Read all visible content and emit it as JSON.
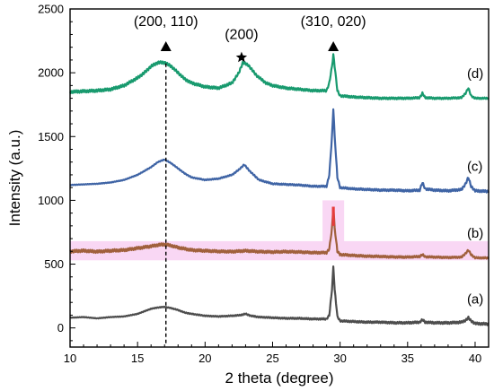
{
  "chart_data": {
    "type": "line",
    "xlabel": "2 theta (degree)",
    "ylabel": "Intensity (a.u.)",
    "xlim": [
      10,
      41
    ],
    "ylim": [
      -150,
      2500
    ],
    "x_ticks": [
      "10",
      "15",
      "20",
      "25",
      "30",
      "35",
      "40"
    ],
    "y_ticks": [
      "0",
      "500",
      "1000",
      "1500",
      "2000",
      "2500"
    ],
    "grid": false,
    "series": [
      {
        "name": "(a)",
        "color": "#4d4d4d",
        "x": [
          10,
          11,
          12,
          13,
          14,
          15,
          15.5,
          16,
          16.5,
          17,
          17.5,
          18,
          18.5,
          19,
          20,
          21,
          22,
          22.6,
          23,
          23.4,
          24,
          25,
          26,
          27,
          28,
          29,
          29.2,
          29.4,
          29.5,
          29.6,
          29.8,
          30,
          31,
          32,
          33,
          34,
          35,
          35.9,
          36.1,
          36.3,
          37,
          38,
          39,
          39.3,
          39.5,
          39.7,
          40,
          41
        ],
        "y": [
          80,
          85,
          75,
          85,
          90,
          110,
          130,
          150,
          160,
          165,
          155,
          140,
          120,
          110,
          95,
          90,
          95,
          100,
          110,
          95,
          85,
          80,
          75,
          75,
          70,
          70,
          100,
          300,
          480,
          300,
          90,
          55,
          50,
          45,
          45,
          40,
          40,
          45,
          65,
          45,
          40,
          40,
          45,
          60,
          80,
          55,
          35,
          30
        ]
      },
      {
        "name": "(b)",
        "color": "#a0603c",
        "x": [
          10,
          11,
          12,
          13,
          14,
          15,
          16,
          16.5,
          17,
          17.5,
          18,
          19,
          20,
          21,
          22,
          23,
          24,
          25,
          26,
          27,
          28,
          29,
          29.2,
          29.4,
          29.5,
          29.6,
          29.8,
          30,
          31,
          32,
          33,
          34,
          35,
          35.9,
          36.1,
          36.3,
          37,
          38,
          39,
          39.3,
          39.5,
          39.7,
          40,
          41
        ],
        "y": [
          600,
          605,
          598,
          605,
          610,
          625,
          640,
          650,
          655,
          645,
          630,
          610,
          605,
          600,
          598,
          605,
          598,
          595,
          598,
          595,
          590,
          590,
          620,
          780,
          950,
          780,
          600,
          575,
          568,
          562,
          560,
          556,
          555,
          560,
          575,
          558,
          555,
          552,
          555,
          585,
          610,
          575,
          550,
          548
        ]
      },
      {
        "name": "(c)",
        "color": "#3f64a5",
        "x": [
          10,
          11,
          12,
          13,
          14,
          15,
          16,
          16.5,
          17,
          17.5,
          18,
          18.5,
          19,
          20,
          21,
          22,
          22.5,
          22.9,
          23.3,
          24,
          25,
          26,
          27,
          28,
          29,
          29.2,
          29.4,
          29.5,
          29.6,
          29.8,
          30,
          31,
          32,
          33,
          34,
          35,
          35.9,
          36.1,
          36.3,
          37,
          38,
          39,
          39.3,
          39.5,
          39.7,
          40,
          41
        ],
        "y": [
          1120,
          1125,
          1130,
          1140,
          1160,
          1200,
          1260,
          1300,
          1320,
          1290,
          1250,
          1210,
          1180,
          1160,
          1170,
          1200,
          1240,
          1280,
          1230,
          1160,
          1130,
          1125,
          1120,
          1110,
          1110,
          1200,
          1500,
          1720,
          1500,
          1180,
          1100,
          1090,
          1085,
          1080,
          1080,
          1075,
          1080,
          1140,
          1090,
          1080,
          1075,
          1085,
          1130,
          1180,
          1110,
          1075,
          1070
        ]
      },
      {
        "name": "(d)",
        "color": "#189a6e",
        "x": [
          10,
          11,
          12,
          13,
          14,
          15,
          15.5,
          16,
          16.5,
          17,
          17.5,
          18,
          18.5,
          19,
          20,
          21,
          22,
          22.5,
          22.8,
          23.2,
          23.8,
          24.5,
          25,
          26,
          27,
          28,
          29,
          29.2,
          29.4,
          29.5,
          29.6,
          29.8,
          30,
          31,
          32,
          33,
          34,
          35,
          35.9,
          36.1,
          36.3,
          37,
          38,
          39,
          39.3,
          39.5,
          39.7,
          40,
          41
        ],
        "y": [
          1850,
          1855,
          1860,
          1870,
          1900,
          1960,
          2000,
          2050,
          2080,
          2080,
          2050,
          2000,
          1950,
          1920,
          1890,
          1880,
          1920,
          2000,
          2080,
          2060,
          1980,
          1920,
          1900,
          1880,
          1870,
          1860,
          1860,
          1920,
          2050,
          2140,
          2050,
          1860,
          1820,
          1810,
          1805,
          1800,
          1800,
          1800,
          1805,
          1840,
          1805,
          1800,
          1800,
          1805,
          1840,
          1880,
          1820,
          1800,
          1800
        ]
      }
    ],
    "series_labels": [
      "(a)",
      "(b)",
      "(c)",
      "(d)"
    ],
    "annotations": [
      {
        "text": "(200, 110)",
        "x": 17.1,
        "y": 2365,
        "marker": "triangle",
        "marker_y": 2205
      },
      {
        "text": "(200)",
        "x": 22.7,
        "y": 2265,
        "marker": "star",
        "marker_y": 2120
      },
      {
        "text": "(310, 020)",
        "x": 29.5,
        "y": 2365,
        "marker": "triangle",
        "marker_y": 2205
      }
    ],
    "reference_line": {
      "x": 17.1,
      "style": "dashed",
      "y_from": -120,
      "y_to": 2085
    },
    "highlight_color": "#f7c6ef"
  }
}
